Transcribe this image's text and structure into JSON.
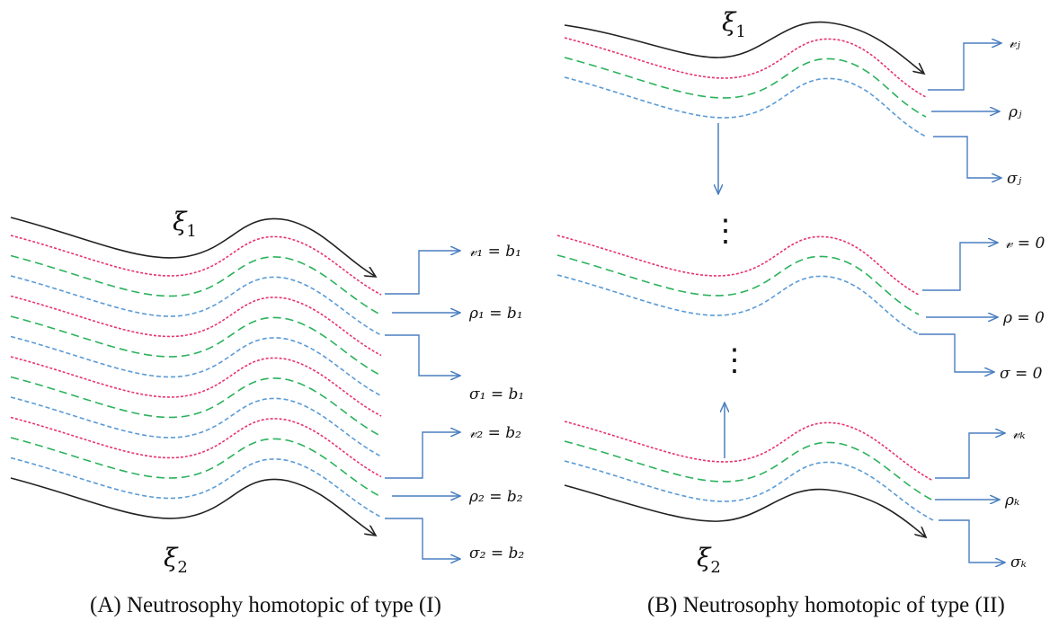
{
  "panel_a": {
    "caption_tag": "(A)",
    "caption_text": "Neutrosophy homotopic of type (I)",
    "top_label": {
      "base": "ξ",
      "sub": "1"
    },
    "bottom_label": {
      "base": "ξ",
      "sub": "2"
    },
    "labels": [
      {
        "text": "𝓋₁ = b₁"
      },
      {
        "text": "ρ₁ = b₁"
      },
      {
        "text": "σ₁ = b₁"
      },
      {
        "text": "𝓋₂ = b₂"
      },
      {
        "text": "ρ₂ = b₂"
      },
      {
        "text": "σ₂ = b₂"
      }
    ]
  },
  "panel_b": {
    "caption_tag": "(B)",
    "caption_text": "Neutrosophy homotopic of type (II)",
    "top_label": {
      "base": "ξ",
      "sub": "1"
    },
    "bottom_label": {
      "base": "ξ",
      "sub": "2"
    },
    "ellipsis": "⋮",
    "labels": [
      {
        "text": "𝓋ⱼ"
      },
      {
        "text": "ρⱼ"
      },
      {
        "text": "σⱼ"
      },
      {
        "text": "𝓋 = 0"
      },
      {
        "text": "ρ = 0"
      },
      {
        "text": "σ = 0"
      },
      {
        "text": "𝓋ₖ"
      },
      {
        "text": "ρₖ"
      },
      {
        "text": "σₖ"
      }
    ]
  },
  "colors": {
    "boundary": "#222222",
    "truth": "#e8336b",
    "indeterminacy": "#2bb25c",
    "falsity": "#5b9bd5",
    "arrow": "#4a7fc0"
  }
}
